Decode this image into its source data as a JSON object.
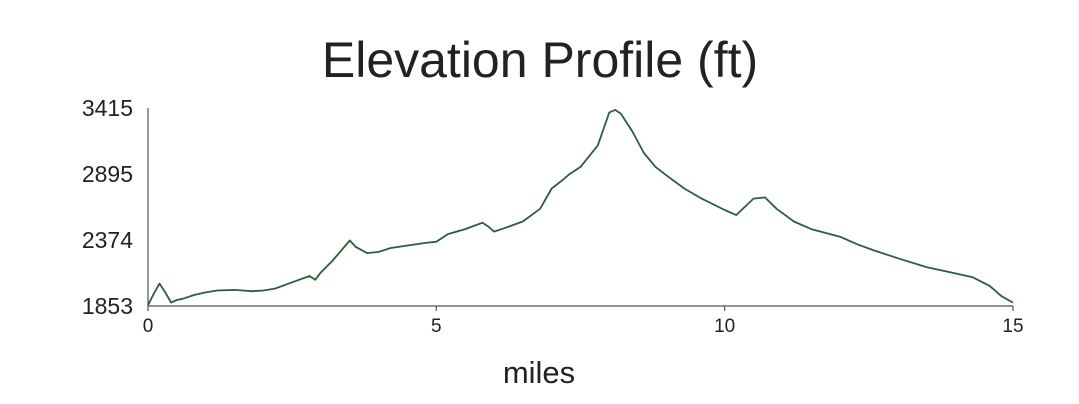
{
  "chart_data": {
    "type": "line",
    "title": "Elevation Profile (ft)",
    "xlabel": "miles",
    "ylabel": "",
    "xlim": [
      0,
      15
    ],
    "ylim": [
      1853,
      3415
    ],
    "x_ticks": [
      0,
      5,
      10,
      15
    ],
    "y_ticks": [
      1853,
      2374,
      2895,
      3415
    ],
    "grid": false,
    "legend": "none",
    "line_color": "#2d5e3a",
    "series": [
      {
        "x": [
          0,
          0.1,
          0.2,
          0.3,
          0.4,
          0.5,
          0.6,
          0.8,
          1.0,
          1.2,
          1.5,
          1.8,
          2.0,
          2.2,
          2.5,
          2.8,
          2.9,
          3.0,
          3.2,
          3.5,
          3.6,
          3.8,
          4.0,
          4.2,
          4.5,
          4.8,
          5.0,
          5.2,
          5.5,
          5.8,
          5.9,
          6.0,
          6.2,
          6.5,
          6.8,
          7.0,
          7.2,
          7.3,
          7.5,
          7.8,
          8.0,
          8.1,
          8.2,
          8.4,
          8.6,
          8.8,
          9.0,
          9.3,
          9.6,
          10.0,
          10.2,
          10.5,
          10.7,
          10.9,
          11.2,
          11.5,
          12.0,
          12.3,
          12.6,
          13.0,
          13.5,
          14.0,
          14.3,
          14.6,
          14.8,
          15.0
        ],
        "y": [
          1860,
          1950,
          2030,
          1960,
          1880,
          1900,
          1910,
          1940,
          1960,
          1975,
          1980,
          1970,
          1975,
          1990,
          2040,
          2090,
          2060,
          2120,
          2210,
          2370,
          2320,
          2270,
          2280,
          2310,
          2330,
          2350,
          2360,
          2420,
          2460,
          2510,
          2480,
          2440,
          2470,
          2520,
          2620,
          2780,
          2850,
          2890,
          2950,
          3120,
          3380,
          3400,
          3370,
          3230,
          3060,
          2950,
          2880,
          2780,
          2700,
          2610,
          2570,
          2700,
          2710,
          2620,
          2520,
          2460,
          2400,
          2340,
          2290,
          2230,
          2160,
          2110,
          2080,
          2010,
          1930,
          1880
        ]
      }
    ]
  }
}
